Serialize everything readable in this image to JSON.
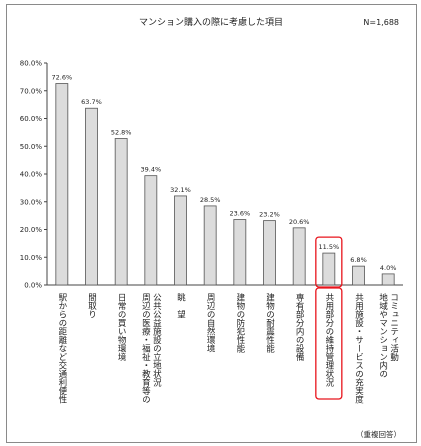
{
  "chart_data": {
    "type": "bar",
    "title": "マンション購入の際に考慮した項目",
    "sample_note": "N=1,688",
    "footnote": "（重複回答）",
    "ylim": [
      0,
      80
    ],
    "yticks": [
      "0.0%",
      "10.0%",
      "20.0%",
      "30.0%",
      "40.0%",
      "50.0%",
      "60.0%",
      "70.0%",
      "80.0%"
    ],
    "grid": false,
    "categories": [
      "駅からの距離など交通利便性",
      "間取り",
      "日常の買い物環境",
      "周辺の医療・福祉・教育等の公共公益施設の立地状況",
      "眺望",
      "周辺の自然環境",
      "建物の防犯性能",
      "建物の耐震性能",
      "専有部分内の設備",
      "共用部分の維持管理状況",
      "共用施設・サービスの充実度",
      "地域やマンション内のコミュニティ活動"
    ],
    "category_lines": [
      [
        "駅からの距離など交通利便性"
      ],
      [
        "間取り"
      ],
      [
        "日常の買い物環境"
      ],
      [
        "周辺の医療・福祉・教育等の",
        "公共公益施設の立地状況"
      ],
      [
        "眺　望"
      ],
      [
        "周辺の自然環境"
      ],
      [
        "建物の防犯性能"
      ],
      [
        "建物の耐震性能"
      ],
      [
        "専有部分内の設備"
      ],
      [
        "共用部分の維持管理状況"
      ],
      [
        "共用施設・サービスの充実度"
      ],
      [
        "地域やマンション内の",
        "コミュニティ活動"
      ]
    ],
    "values": [
      72.6,
      63.7,
      52.8,
      39.4,
      32.1,
      28.5,
      23.6,
      23.2,
      20.6,
      11.5,
      6.8,
      4.0
    ],
    "value_labels": [
      "72.6%",
      "63.7%",
      "52.8%",
      "39.4%",
      "32.1%",
      "28.5%",
      "23.6%",
      "23.2%",
      "20.6%",
      "11.5%",
      "6.8%",
      "4.0%"
    ],
    "highlight_index": 9,
    "colors": {
      "bar_fill": "#dcdcdc",
      "bar_stroke": "#555555",
      "axis": "#444444",
      "highlight": "#e8141c"
    }
  }
}
